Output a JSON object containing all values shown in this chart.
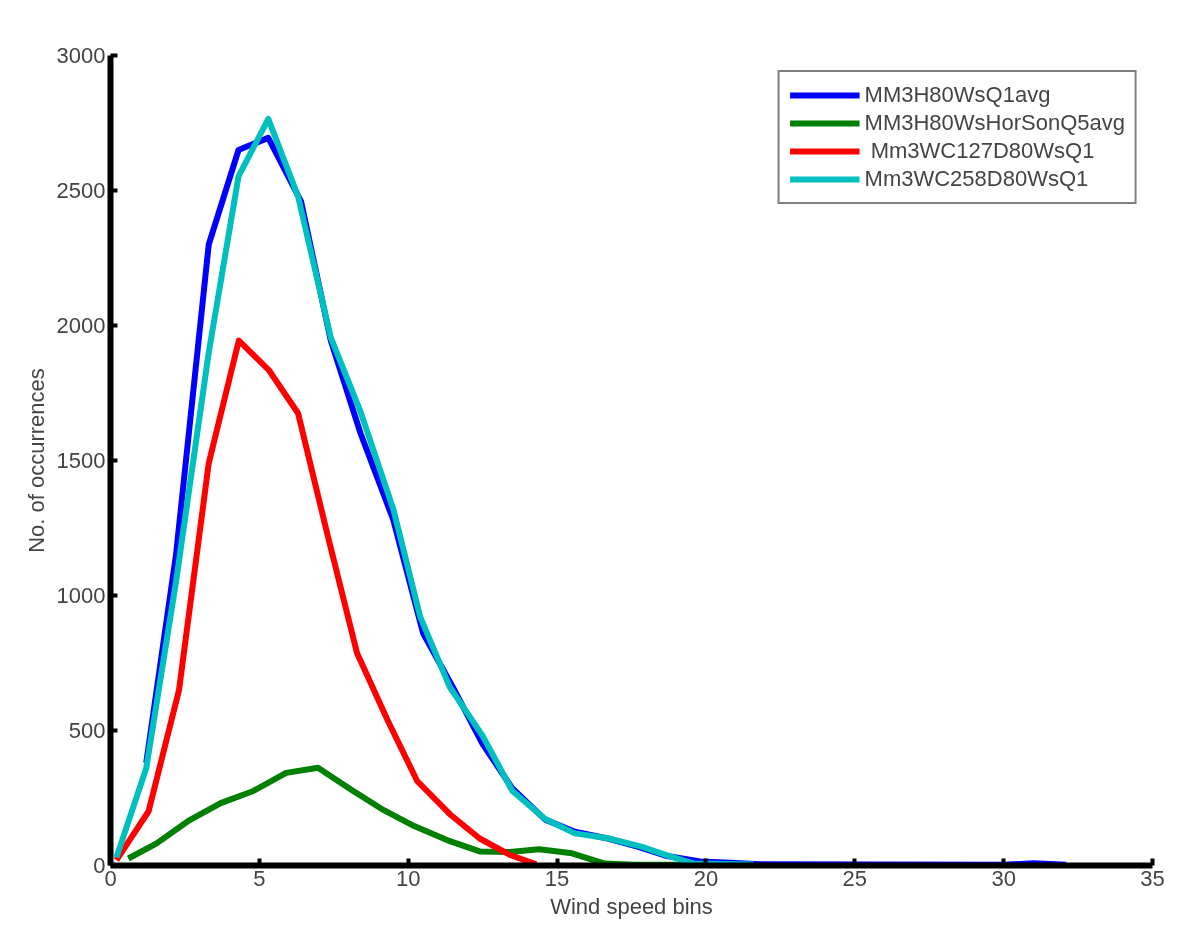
{
  "chart_data": {
    "type": "line",
    "xlabel": "Wind speed bins",
    "ylabel": "No. of occurrences",
    "xlim": [
      0,
      35
    ],
    "xticks": [
      0,
      5,
      10,
      15,
      20,
      25,
      30,
      35
    ],
    "ylim": [
      0,
      3000
    ],
    "yticks": [
      0,
      500,
      1000,
      1500,
      2000,
      2500,
      3000
    ],
    "grid": false,
    "legend": "top right",
    "marker": "none",
    "line_style": "solid",
    "series": [
      {
        "name": "MM3H80WsQ1avg",
        "color": "#0000ff",
        "x": [
          1.2,
          2.2,
          3.3,
          4.3,
          5.3,
          6.4,
          7.4,
          8.4,
          9.5,
          10.5,
          11.5,
          12.5,
          13.5,
          14.6,
          15.6,
          16.7,
          17.7,
          18.7,
          19.8,
          20.8,
          21.8,
          30,
          31,
          32.1
        ],
        "values": [
          380,
          1150,
          2300,
          2650,
          2695,
          2460,
          1944,
          1600,
          1280,
          860,
          660,
          450,
          285,
          170,
          125,
          100,
          70,
          35,
          15,
          10,
          5,
          3,
          8,
          3
        ]
      },
      {
        "name": "MM3H80WsHorSonQ5avg",
        "color": "#008000",
        "x": [
          0.6,
          1.55,
          2.6,
          3.7,
          4.8,
          5.9,
          6.97,
          8.1,
          9.1,
          10.2,
          11.4,
          12.4,
          13.4,
          14.4,
          15.5,
          16.6,
          17.6,
          18.6,
          19.7
        ],
        "values": [
          26,
          82,
          164,
          231,
          276,
          343,
          362,
          280,
          210,
          146,
          90,
          52,
          50,
          60,
          45,
          7,
          3,
          3,
          3
        ]
      },
      {
        "name": " Mm3WC127D80WsQ1",
        "color": "#ff0000",
        "x": [
          0.2,
          1.28,
          2.3,
          3.3,
          4.31,
          5.31,
          6.3,
          7.3,
          8.28,
          9.3,
          10.3,
          11.4,
          12.4,
          13.4,
          14.3
        ],
        "values": [
          20,
          201,
          649,
          1490,
          1944,
          1836,
          1675,
          1220,
          787,
          540,
          313,
          190,
          100,
          40,
          4
        ]
      },
      {
        "name": "Mm3WC258D80WsQ1",
        "color": "#00bfbf",
        "x": [
          0.2,
          1.2,
          2.2,
          3.3,
          4.3,
          5.3,
          6.3,
          7.4,
          8.4,
          9.5,
          10.4,
          11.4,
          12.5,
          13.5,
          14.6,
          15.6,
          16.7,
          17.8,
          18.8,
          19.6,
          21.6
        ],
        "values": [
          30,
          360,
          1050,
          1900,
          2552,
          2765,
          2478,
          1955,
          1680,
          1320,
          922,
          660,
          480,
          276,
          172,
          119,
          101,
          71,
          34,
          7,
          4
        ]
      }
    ]
  }
}
